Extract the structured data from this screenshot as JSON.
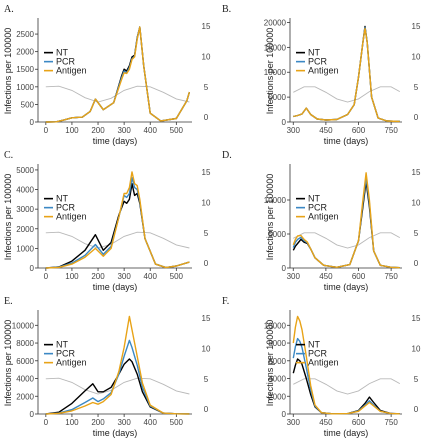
{
  "colors": {
    "NT": "#000000",
    "PCR": "#3b88c4",
    "Antigen": "#e8a317",
    "seasonal": "#b9b9b9"
  },
  "legend": {
    "items": [
      "NT",
      "PCR",
      "Antigen"
    ],
    "placement": "left"
  },
  "chart_data": [
    {
      "type": "line",
      "label": "A.",
      "xlabel": "time (days)",
      "ylabel": "Infections per 100000",
      "xlim": [
        -30,
        560
      ],
      "ylim": [
        0,
        2900
      ],
      "xticks": [
        0,
        100,
        200,
        300,
        400,
        500
      ],
      "yticks": [
        0,
        500,
        1000,
        1500,
        2000,
        2500
      ],
      "ylim2": [
        -0.8,
        16
      ],
      "yticks2": [
        0,
        5,
        10,
        15
      ],
      "seasonal": {
        "x": [
          0,
          50,
          100,
          150,
          200,
          250,
          300,
          350,
          400,
          450,
          500,
          550
        ],
        "y": [
          5.0,
          5.1,
          4.4,
          3.2,
          2.5,
          3.1,
          4.4,
          5.1,
          5.0,
          4.1,
          3.0,
          2.5
        ]
      },
      "series": [
        {
          "name": "NT",
          "x": [
            0,
            40,
            70,
            100,
            140,
            170,
            190,
            220,
            260,
            290,
            300,
            310,
            320,
            330,
            340,
            350,
            360,
            375,
            400,
            440,
            500,
            540,
            550
          ],
          "y": [
            0,
            5,
            60,
            120,
            140,
            300,
            650,
            350,
            550,
            1300,
            1500,
            1450,
            1600,
            1850,
            1900,
            2400,
            2700,
            1600,
            250,
            30,
            100,
            600,
            850
          ]
        },
        {
          "name": "PCR",
          "x": [
            0,
            40,
            70,
            100,
            140,
            170,
            190,
            220,
            260,
            290,
            300,
            310,
            320,
            330,
            340,
            350,
            360,
            375,
            400,
            440,
            500,
            540,
            550
          ],
          "y": [
            0,
            5,
            60,
            120,
            140,
            300,
            650,
            350,
            550,
            1250,
            1450,
            1400,
            1550,
            1800,
            1870,
            2380,
            2700,
            1600,
            250,
            30,
            100,
            600,
            850
          ]
        },
        {
          "name": "Antigen",
          "x": [
            0,
            40,
            70,
            100,
            140,
            170,
            190,
            220,
            260,
            290,
            300,
            310,
            320,
            330,
            340,
            350,
            360,
            375,
            400,
            440,
            500,
            540,
            550
          ],
          "y": [
            0,
            5,
            60,
            120,
            140,
            300,
            650,
            350,
            550,
            1200,
            1400,
            1380,
            1500,
            1780,
            1850,
            2350,
            2700,
            1600,
            250,
            30,
            100,
            600,
            850
          ]
        }
      ]
    },
    {
      "type": "line",
      "label": "B.",
      "xlabel": "time (days)",
      "ylabel": "Infections per 100000",
      "xlim": [
        285,
        800
      ],
      "ylim": [
        0,
        20500
      ],
      "xticks": [
        300,
        450,
        600,
        750
      ],
      "yticks": [
        0,
        5000,
        10000,
        15000,
        20000
      ],
      "ylim2": [
        -0.8,
        16
      ],
      "yticks2": [
        0,
        5,
        10,
        15
      ],
      "seasonal": {
        "x": [
          300,
          350,
          400,
          450,
          500,
          550,
          600,
          650,
          700,
          750,
          790
        ],
        "y": [
          4.1,
          5.0,
          5.0,
          4.1,
          3.0,
          2.5,
          3.0,
          4.2,
          5.0,
          5.0,
          4.2
        ]
      },
      "series": [
        {
          "name": "NT",
          "x": [
            300,
            320,
            340,
            360,
            380,
            410,
            450,
            500,
            550,
            580,
            600,
            620,
            630,
            640,
            660,
            690,
            730,
            790
          ],
          "y": [
            1100,
            1300,
            1600,
            2800,
            1500,
            600,
            400,
            500,
            1500,
            3500,
            9000,
            16000,
            19200,
            16000,
            5000,
            800,
            200,
            100
          ]
        },
        {
          "name": "PCR",
          "x": [
            300,
            320,
            340,
            360,
            380,
            410,
            450,
            500,
            550,
            580,
            600,
            620,
            630,
            640,
            660,
            690,
            730,
            790
          ],
          "y": [
            1100,
            1300,
            1600,
            2800,
            1500,
            600,
            400,
            500,
            1500,
            3500,
            9000,
            16000,
            19000,
            16000,
            5000,
            800,
            200,
            100
          ]
        },
        {
          "name": "Antigen",
          "x": [
            300,
            320,
            340,
            360,
            380,
            410,
            450,
            500,
            550,
            580,
            600,
            620,
            630,
            640,
            660,
            690,
            730,
            790
          ],
          "y": [
            1100,
            1300,
            1600,
            2800,
            1500,
            600,
            400,
            500,
            1500,
            3500,
            9000,
            16000,
            18800,
            16000,
            5000,
            800,
            200,
            100
          ]
        }
      ]
    },
    {
      "type": "line",
      "label": "C.",
      "xlabel": "time (days)",
      "ylabel": "Infections per 100000",
      "xlim": [
        -30,
        560
      ],
      "ylim": [
        0,
        5200
      ],
      "xticks": [
        0,
        100,
        200,
        300,
        400,
        500
      ],
      "yticks": [
        0,
        1000,
        2000,
        3000,
        4000,
        5000
      ],
      "ylim2": [
        -0.8,
        16
      ],
      "yticks2": [
        0,
        5,
        10,
        15
      ],
      "seasonal": {
        "x": [
          0,
          50,
          100,
          150,
          200,
          250,
          300,
          350,
          400,
          450,
          500,
          550
        ],
        "y": [
          5.0,
          5.1,
          4.4,
          3.2,
          2.5,
          3.1,
          4.4,
          5.1,
          5.0,
          4.1,
          3.0,
          2.5
        ]
      },
      "series": [
        {
          "name": "NT",
          "x": [
            0,
            50,
            100,
            150,
            190,
            220,
            250,
            280,
            300,
            310,
            320,
            330,
            340,
            350,
            360,
            380,
            420,
            460,
            500,
            550
          ],
          "y": [
            0,
            50,
            350,
            900,
            1700,
            900,
            1300,
            2700,
            3400,
            3300,
            3500,
            4300,
            3700,
            3800,
            3300,
            1500,
            200,
            20,
            100,
            300
          ]
        },
        {
          "name": "PCR",
          "x": [
            0,
            50,
            100,
            150,
            190,
            220,
            250,
            280,
            300,
            310,
            320,
            330,
            340,
            350,
            360,
            380,
            420,
            460,
            500,
            550
          ],
          "y": [
            0,
            40,
            250,
            650,
            1200,
            700,
            1100,
            2600,
            3700,
            3600,
            3800,
            4600,
            4100,
            4000,
            3400,
            1500,
            200,
            20,
            100,
            300
          ]
        },
        {
          "name": "Antigen",
          "x": [
            0,
            50,
            100,
            150,
            190,
            220,
            250,
            280,
            300,
            310,
            320,
            330,
            340,
            350,
            360,
            380,
            420,
            460,
            500,
            550
          ],
          "y": [
            0,
            30,
            200,
            550,
            1000,
            600,
            1000,
            2600,
            3800,
            3800,
            4100,
            4900,
            4300,
            4200,
            3500,
            1500,
            200,
            20,
            100,
            300
          ]
        }
      ]
    },
    {
      "type": "line",
      "label": "D.",
      "xlabel": "time (days)",
      "ylabel": "Infections per 100000",
      "xlim": [
        285,
        800
      ],
      "ylim": [
        0,
        15000
      ],
      "xticks": [
        300,
        450,
        600,
        750
      ],
      "yticks": [
        0,
        5000,
        10000
      ],
      "ylim2": [
        -0.8,
        16
      ],
      "yticks2": [
        0,
        5,
        10,
        15
      ],
      "seasonal": {
        "x": [
          300,
          350,
          400,
          450,
          500,
          550,
          600,
          650,
          700,
          750,
          790
        ],
        "y": [
          4.1,
          5.0,
          5.0,
          4.1,
          3.0,
          2.5,
          3.0,
          4.2,
          5.0,
          5.0,
          4.2
        ]
      },
      "series": [
        {
          "name": "NT",
          "x": [
            300,
            310,
            320,
            335,
            350,
            365,
            380,
            400,
            440,
            500,
            560,
            600,
            620,
            635,
            650,
            670,
            700,
            750,
            790
          ],
          "y": [
            2600,
            3200,
            3600,
            4200,
            3800,
            3600,
            2800,
            1500,
            400,
            100,
            500,
            4000,
            9000,
            12700,
            9000,
            2500,
            400,
            100,
            50
          ]
        },
        {
          "name": "PCR",
          "x": [
            300,
            310,
            320,
            335,
            350,
            365,
            380,
            400,
            440,
            500,
            560,
            600,
            620,
            635,
            650,
            670,
            700,
            750,
            790
          ],
          "y": [
            3000,
            3800,
            4200,
            4500,
            4000,
            3700,
            2800,
            1500,
            400,
            100,
            500,
            4000,
            9500,
            13300,
            9500,
            2500,
            400,
            100,
            50
          ]
        },
        {
          "name": "Antigen",
          "x": [
            300,
            310,
            320,
            335,
            350,
            365,
            380,
            400,
            440,
            500,
            560,
            600,
            620,
            635,
            650,
            670,
            700,
            750,
            790
          ],
          "y": [
            3400,
            4200,
            4700,
            4800,
            4200,
            3800,
            2800,
            1500,
            400,
            100,
            500,
            4000,
            10000,
            14000,
            10000,
            2500,
            400,
            100,
            50
          ]
        }
      ]
    },
    {
      "type": "line",
      "label": "E.",
      "xlabel": "time (days)",
      "ylabel": "Infections per 100000",
      "xlim": [
        -30,
        560
      ],
      "ylim": [
        0,
        11500
      ],
      "xticks": [
        0,
        100,
        200,
        300,
        400,
        500
      ],
      "yticks": [
        0,
        2000,
        4000,
        6000,
        8000,
        10000
      ],
      "ylim2": [
        -0.8,
        16
      ],
      "yticks2": [
        0,
        5,
        10,
        15
      ],
      "seasonal": {
        "x": [
          0,
          50,
          100,
          150,
          200,
          250,
          300,
          350,
          400,
          450,
          500,
          550
        ],
        "y": [
          5.0,
          5.1,
          4.4,
          3.2,
          2.5,
          3.1,
          4.4,
          5.1,
          5.0,
          4.1,
          3.0,
          2.5
        ]
      },
      "series": [
        {
          "name": "NT",
          "x": [
            0,
            50,
            100,
            150,
            180,
            200,
            220,
            250,
            280,
            300,
            320,
            330,
            350,
            370,
            400,
            450,
            500,
            550
          ],
          "y": [
            0,
            200,
            1200,
            2600,
            3400,
            2500,
            2500,
            3000,
            4500,
            5600,
            6200,
            5900,
            4500,
            2500,
            800,
            100,
            20,
            10
          ]
        },
        {
          "name": "PCR",
          "x": [
            0,
            50,
            100,
            150,
            180,
            200,
            220,
            250,
            280,
            300,
            320,
            330,
            350,
            370,
            400,
            450,
            500,
            550
          ],
          "y": [
            0,
            100,
            500,
            1300,
            1800,
            1400,
            1700,
            2400,
            4500,
            6500,
            8300,
            7500,
            5500,
            3000,
            900,
            100,
            20,
            10
          ]
        },
        {
          "name": "Antigen",
          "x": [
            0,
            50,
            100,
            150,
            180,
            200,
            220,
            250,
            280,
            300,
            320,
            330,
            350,
            370,
            400,
            450,
            500,
            550
          ],
          "y": [
            0,
            80,
            350,
            900,
            1300,
            1100,
            1400,
            2200,
            4800,
            7500,
            11000,
            9500,
            6500,
            3500,
            1000,
            100,
            20,
            10
          ]
        }
      ]
    },
    {
      "type": "line",
      "label": "F.",
      "xlabel": "time (days)",
      "ylabel": "Infections per 100000",
      "xlim": [
        285,
        800
      ],
      "ylim": [
        0,
        11500
      ],
      "xticks": [
        300,
        450,
        600,
        750
      ],
      "yticks": [
        0,
        2000,
        4000,
        6000,
        8000,
        10000
      ],
      "ylim2": [
        -0.8,
        16
      ],
      "yticks2": [
        0,
        5,
        10,
        15
      ],
      "seasonal": {
        "x": [
          300,
          350,
          400,
          450,
          500,
          550,
          600,
          650,
          700,
          750,
          790
        ],
        "y": [
          4.1,
          5.0,
          5.0,
          4.1,
          3.0,
          2.5,
          3.0,
          4.2,
          5.0,
          5.0,
          4.2
        ]
      },
      "series": [
        {
          "name": "NT",
          "x": [
            300,
            310,
            320,
            330,
            340,
            360,
            380,
            400,
            430,
            480,
            550,
            600,
            630,
            650,
            670,
            700,
            750,
            790
          ],
          "y": [
            4600,
            5500,
            6200,
            6000,
            5600,
            4000,
            2200,
            800,
            150,
            20,
            50,
            400,
            1200,
            1900,
            1300,
            400,
            60,
            20
          ]
        },
        {
          "name": "PCR",
          "x": [
            300,
            310,
            320,
            330,
            340,
            360,
            380,
            400,
            430,
            480,
            550,
            600,
            630,
            650,
            670,
            700,
            750,
            790
          ],
          "y": [
            6300,
            7600,
            8500,
            8200,
            7500,
            5200,
            2700,
            900,
            150,
            20,
            50,
            350,
            1000,
            1500,
            1000,
            300,
            50,
            20
          ]
        },
        {
          "name": "Antigen",
          "x": [
            300,
            310,
            320,
            330,
            340,
            360,
            380,
            400,
            430,
            480,
            550,
            600,
            630,
            650,
            670,
            700,
            750,
            790
          ],
          "y": [
            8000,
            9800,
            11000,
            10500,
            9500,
            6500,
            3200,
            1000,
            150,
            20,
            50,
            300,
            900,
            1300,
            900,
            300,
            50,
            20
          ]
        }
      ]
    }
  ]
}
